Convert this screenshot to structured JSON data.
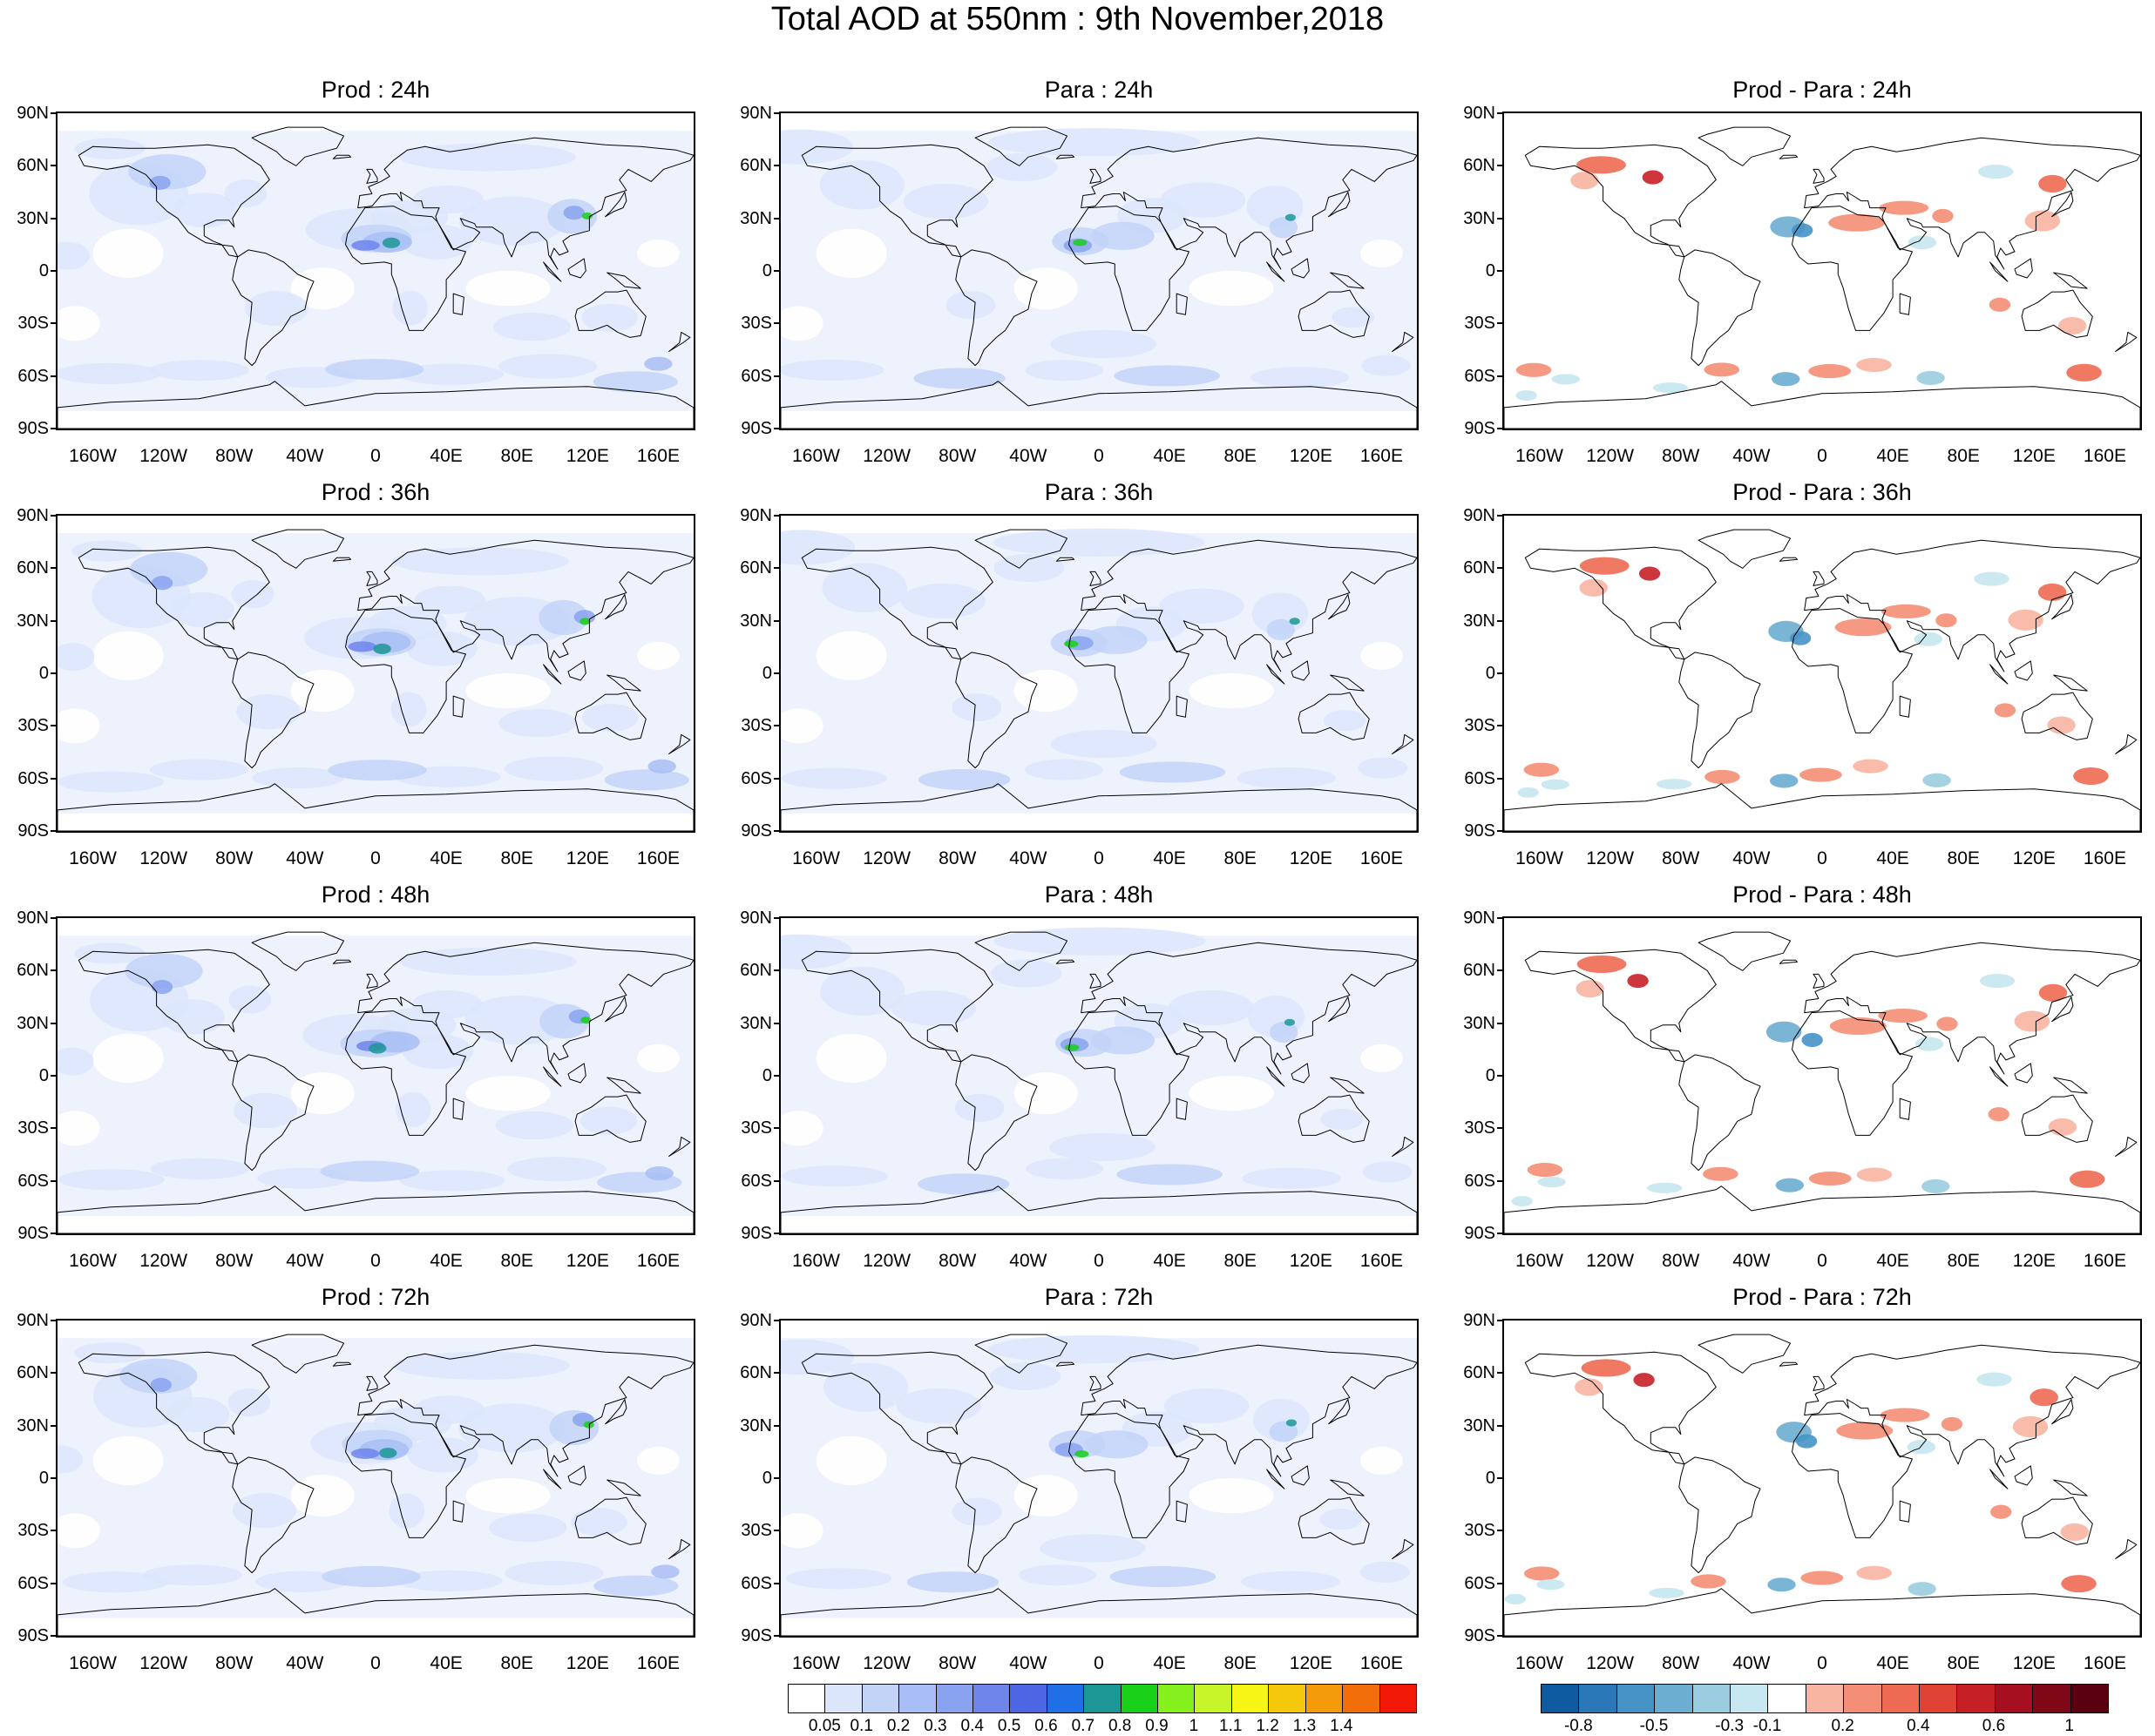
{
  "title": "Total AOD at 550nm : 9th November,2018",
  "axes": {
    "lat_labels": [
      "90N",
      "60N",
      "30N",
      "0",
      "30S",
      "60S",
      "90S"
    ],
    "lon_labels": [
      "160W",
      "120W",
      "80W",
      "40W",
      "0",
      "40E",
      "80E",
      "120E",
      "160E"
    ]
  },
  "panels": [
    {
      "title": "Prod : 24h",
      "type": "prod"
    },
    {
      "title": "Para : 24h",
      "type": "para"
    },
    {
      "title": "Prod - Para : 24h",
      "type": "diff"
    },
    {
      "title": "Prod : 36h",
      "type": "prod"
    },
    {
      "title": "Para : 36h",
      "type": "para"
    },
    {
      "title": "Prod - Para : 36h",
      "type": "diff"
    },
    {
      "title": "Prod : 48h",
      "type": "prod"
    },
    {
      "title": "Para : 48h",
      "type": "para"
    },
    {
      "title": "Prod - Para : 48h",
      "type": "diff"
    },
    {
      "title": "Prod : 72h",
      "type": "prod"
    },
    {
      "title": "Para : 72h",
      "type": "para"
    },
    {
      "title": "Prod - Para : 72h",
      "type": "diff"
    }
  ],
  "aod_colorbar": {
    "labels": [
      "0.05",
      "0.1",
      "0.2",
      "0.3",
      "0.4",
      "0.5",
      "0.6",
      "0.7",
      "0.8",
      "0.9",
      "1",
      "1.1",
      "1.2",
      "1.3",
      "1.4"
    ],
    "colors": [
      "#ffffff",
      "#dce6fb",
      "#c3d3f8",
      "#a8bef5",
      "#8aa3f0",
      "#6f85ec",
      "#4c66e6",
      "#1f6fe6",
      "#1d9696",
      "#18d018",
      "#86ef1e",
      "#c7f52a",
      "#f6f514",
      "#f4c80c",
      "#f49b0a",
      "#f26e08",
      "#f21808"
    ]
  },
  "diff_colorbar": {
    "labels": [
      "-0.8",
      "-0.5",
      "-0.3",
      "-0.1",
      "0.2",
      "0.4",
      "0.6",
      "1"
    ],
    "colors": [
      "#0f5ba1",
      "#2a78b8",
      "#4694c6",
      "#6cadd2",
      "#9acde0",
      "#c7e7f1",
      "#ffffff",
      "#f8b5a2",
      "#f48e76",
      "#ee6a52",
      "#e04236",
      "#c62027",
      "#a50f1f",
      "#7f0716",
      "#5a000f"
    ]
  }
}
